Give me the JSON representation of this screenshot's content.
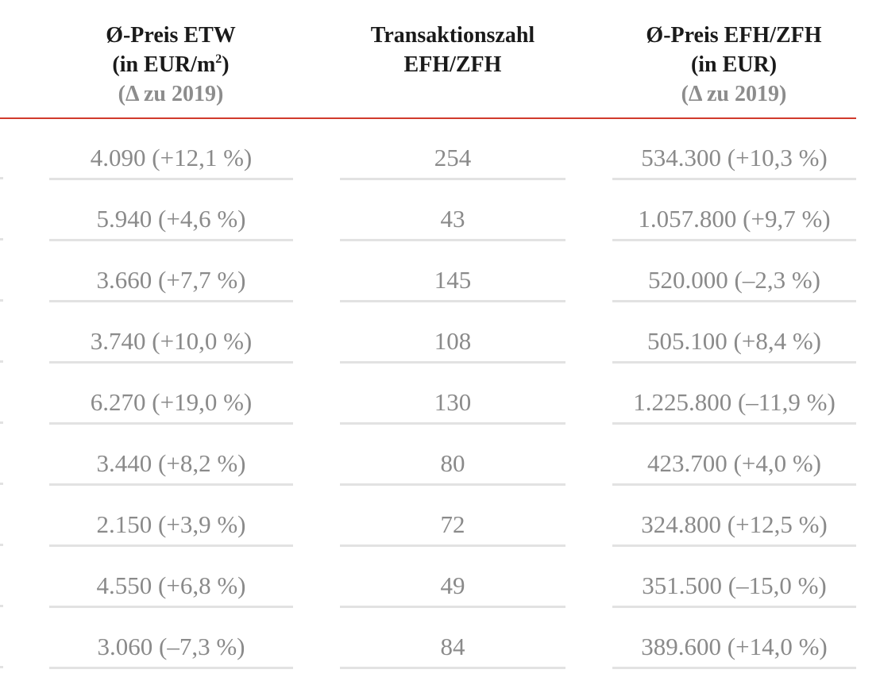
{
  "header": {
    "col1": {
      "line1": "Ø-Preis ETW",
      "line2": "(in EUR/m",
      "line2_sup": "2",
      "line2_end": ")",
      "line3": "(Δ zu 2019)"
    },
    "col2": {
      "line1": "Transaktionszahl",
      "line2": "EFH/ZFH"
    },
    "col3": {
      "line1": "Ø-Preis EFH/ZFH",
      "line2": "(in EUR)",
      "line3": "(Δ zu 2019)"
    }
  },
  "colors": {
    "accent_rule": "#d03a2c",
    "header_text": "#1a1a1a",
    "muted_text": "#8a8a8a",
    "row_divider": "#e2e2e2"
  },
  "rows": [
    {
      "etw": "4.090 (+12,1 %)",
      "count": "254",
      "efh": "534.300 (+10,3 %)"
    },
    {
      "etw": "5.940 (+4,6 %)",
      "count": "43",
      "efh": "1.057.800 (+9,7 %)"
    },
    {
      "etw": "3.660 (+7,7 %)",
      "count": "145",
      "efh": "520.000 (–2,3 %)"
    },
    {
      "etw": "3.740 (+10,0 %)",
      "count": "108",
      "efh": "505.100 (+8,4 %)"
    },
    {
      "etw": "6.270 (+19,0 %)",
      "count": "130",
      "efh": "1.225.800 (–11,9 %)"
    },
    {
      "etw": "3.440 (+8,2 %)",
      "count": "80",
      "efh": "423.700 (+4,0 %)"
    },
    {
      "etw": "2.150 (+3,9 %)",
      "count": "72",
      "efh": "324.800 (+12,5 %)"
    },
    {
      "etw": "4.550 (+6,8 %)",
      "count": "49",
      "efh": "351.500 (–15,0 %)"
    },
    {
      "etw": "3.060 (–7,3 %)",
      "count": "84",
      "efh": "389.600 (+14,0 %)"
    }
  ]
}
